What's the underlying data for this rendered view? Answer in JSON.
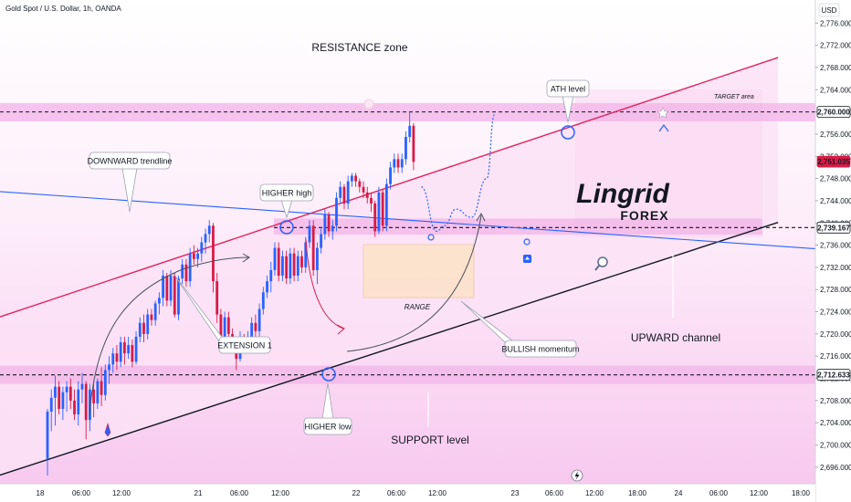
{
  "header": {
    "symbol_line": "Gold Spot / U.S. Dollar, 1h, OANDA"
  },
  "currency_badge": "USD",
  "watermark": {
    "line1": "Lingrid",
    "line2": "FOREX"
  },
  "annotations": {
    "resistance_zone": "RESISTANCE zone",
    "target_area": "TARGET area",
    "ath_level": "ATH level",
    "downward_trendline": "DOWNWARD trendline",
    "higher_high": "HIGHER high",
    "range": "RANGE",
    "extension": "EXTENSION 1",
    "bullish_momentum": "BULLISH momentum",
    "upward_channel": "UPWARD channel",
    "higher_low": "HIGHER low",
    "support_level": "SUPPORT level"
  },
  "colors": {
    "bull": "#2962ff",
    "bear": "#d81b47",
    "zone": "#f3b6e9",
    "channel_fill": "#fce2f6",
    "upper_channel": "#e0245e",
    "lower_channel": "#131722",
    "trendline": "#2962ff",
    "current_price": "#d81b47"
  },
  "chart_data": {
    "type": "candlestick",
    "title": "Gold Spot / U.S. Dollar, 1h, OANDA",
    "y_range": [
      2694,
      2780
    ],
    "y_ticks": [
      "2,776.000",
      "2,772.000",
      "2,768.000",
      "2,764.000",
      "2,760.000",
      "2,756.000",
      "2,752.000",
      "2,748.000",
      "2,744.000",
      "2,740.000",
      "2,736.000",
      "2,732.000",
      "2,728.000",
      "2,724.000",
      "2,720.000",
      "2,716.000",
      "2,712.000",
      "2,708.000",
      "2,704.000",
      "2,700.000",
      "2,696.000"
    ],
    "x_ticks": [
      "18",
      "06:00",
      "12:00",
      "21",
      "06:00",
      "12:00",
      "22",
      "06:00",
      "12:00",
      "23",
      "06:00",
      "12:00",
      "18:00",
      "24",
      "06:00",
      "12:00",
      "18:00"
    ],
    "price_labels": [
      {
        "name": "ath",
        "value": 2760.0,
        "text": "2,760.000"
      },
      {
        "name": "current",
        "value": 2751.035,
        "text": "2,751.035"
      },
      {
        "name": "range-top",
        "value": 2739.167,
        "text": "2,739.167"
      },
      {
        "name": "support",
        "value": 2712.633,
        "text": "2,712.633"
      }
    ],
    "zones": [
      {
        "name": "resistance-zone",
        "from": 2758.3,
        "to": 2761.6
      },
      {
        "name": "range-zone",
        "from": 2737.9,
        "to": 2740.8
      },
      {
        "name": "support-zone",
        "from": 2711.0,
        "to": 2714.3
      }
    ],
    "channel_lines": [
      {
        "name": "upper-channel",
        "from": [
          -14,
          2722.7
        ],
        "to": [
          189.6,
          2769.8
        ]
      },
      {
        "name": "lower-channel",
        "from": [
          -14,
          2694.2
        ],
        "to": [
          189.6,
          2740.1
        ]
      },
      {
        "name": "downward-trendline",
        "from": [
          -15.4,
          2745.8
        ],
        "to": [
          204.6,
          2735.1
        ]
      }
    ],
    "candles": [
      {
        "o": 2697.5,
        "h": 2706.5,
        "l": 2694.5,
        "c": 2706.0
      },
      {
        "o": 2706.0,
        "h": 2710.0,
        "l": 2702.5,
        "c": 2708.5
      },
      {
        "o": 2708.5,
        "h": 2712.5,
        "l": 2703.5,
        "c": 2710.5
      },
      {
        "o": 2710.5,
        "h": 2711.5,
        "l": 2705.5,
        "c": 2706.5
      },
      {
        "o": 2706.5,
        "h": 2710.5,
        "l": 2704.5,
        "c": 2709.5
      },
      {
        "o": 2709.5,
        "h": 2711.5,
        "l": 2706.0,
        "c": 2710.5
      },
      {
        "o": 2710.5,
        "h": 2712.0,
        "l": 2706.5,
        "c": 2708.0
      },
      {
        "o": 2708.0,
        "h": 2710.0,
        "l": 2704.5,
        "c": 2705.5
      },
      {
        "o": 2705.5,
        "h": 2711.5,
        "l": 2703.5,
        "c": 2710.0
      },
      {
        "o": 2710.0,
        "h": 2713.0,
        "l": 2707.5,
        "c": 2711.0
      },
      {
        "o": 2711.0,
        "h": 2711.5,
        "l": 2701.0,
        "c": 2704.5
      },
      {
        "o": 2704.5,
        "h": 2711.0,
        "l": 2702.5,
        "c": 2710.0
      },
      {
        "o": 2710.0,
        "h": 2711.0,
        "l": 2705.0,
        "c": 2707.5
      },
      {
        "o": 2707.5,
        "h": 2712.0,
        "l": 2706.5,
        "c": 2711.5
      },
      {
        "o": 2711.5,
        "h": 2714.0,
        "l": 2707.0,
        "c": 2709.0
      },
      {
        "o": 2709.0,
        "h": 2714.5,
        "l": 2708.0,
        "c": 2713.5
      },
      {
        "o": 2713.5,
        "h": 2716.0,
        "l": 2711.0,
        "c": 2714.5
      },
      {
        "o": 2714.5,
        "h": 2717.5,
        "l": 2713.0,
        "c": 2716.5
      },
      {
        "o": 2716.5,
        "h": 2718.0,
        "l": 2713.5,
        "c": 2715.0
      },
      {
        "o": 2715.0,
        "h": 2719.5,
        "l": 2714.0,
        "c": 2718.5
      },
      {
        "o": 2718.5,
        "h": 2719.5,
        "l": 2714.5,
        "c": 2716.5
      },
      {
        "o": 2716.5,
        "h": 2719.5,
        "l": 2715.5,
        "c": 2718.0
      },
      {
        "o": 2718.0,
        "h": 2719.0,
        "l": 2714.0,
        "c": 2715.0
      },
      {
        "o": 2715.0,
        "h": 2720.5,
        "l": 2714.5,
        "c": 2719.5
      },
      {
        "o": 2719.5,
        "h": 2723.0,
        "l": 2718.5,
        "c": 2722.0
      },
      {
        "o": 2722.0,
        "h": 2723.5,
        "l": 2718.5,
        "c": 2720.0
      },
      {
        "o": 2720.0,
        "h": 2724.5,
        "l": 2719.0,
        "c": 2723.5
      },
      {
        "o": 2723.5,
        "h": 2724.5,
        "l": 2721.5,
        "c": 2722.5
      },
      {
        "o": 2722.5,
        "h": 2726.0,
        "l": 2721.5,
        "c": 2725.5
      },
      {
        "o": 2725.5,
        "h": 2727.5,
        "l": 2723.5,
        "c": 2726.5
      },
      {
        "o": 2726.5,
        "h": 2731.5,
        "l": 2725.0,
        "c": 2730.5
      },
      {
        "o": 2730.5,
        "h": 2731.0,
        "l": 2725.0,
        "c": 2726.0
      },
      {
        "o": 2726.0,
        "h": 2731.5,
        "l": 2725.0,
        "c": 2730.5
      },
      {
        "o": 2730.5,
        "h": 2731.0,
        "l": 2723.0,
        "c": 2723.5
      },
      {
        "o": 2723.5,
        "h": 2730.5,
        "l": 2722.5,
        "c": 2730.0
      },
      {
        "o": 2730.0,
        "h": 2733.5,
        "l": 2729.0,
        "c": 2732.5
      },
      {
        "o": 2732.5,
        "h": 2733.5,
        "l": 2728.5,
        "c": 2729.5
      },
      {
        "o": 2729.5,
        "h": 2735.5,
        "l": 2728.5,
        "c": 2734.5
      },
      {
        "o": 2734.5,
        "h": 2736.0,
        "l": 2732.5,
        "c": 2733.5
      },
      {
        "o": 2733.5,
        "h": 2735.5,
        "l": 2732.0,
        "c": 2734.5
      },
      {
        "o": 2734.5,
        "h": 2737.5,
        "l": 2733.0,
        "c": 2736.5
      },
      {
        "o": 2736.5,
        "h": 2739.0,
        "l": 2734.5,
        "c": 2738.0
      },
      {
        "o": 2738.0,
        "h": 2740.5,
        "l": 2736.5,
        "c": 2739.5
      },
      {
        "o": 2739.5,
        "h": 2740.0,
        "l": 2727.5,
        "c": 2729.5
      },
      {
        "o": 2729.5,
        "h": 2731.0,
        "l": 2722.0,
        "c": 2723.5
      },
      {
        "o": 2723.5,
        "h": 2724.5,
        "l": 2717.5,
        "c": 2719.5
      },
      {
        "o": 2719.5,
        "h": 2724.0,
        "l": 2718.0,
        "c": 2723.0
      },
      {
        "o": 2723.0,
        "h": 2724.0,
        "l": 2718.5,
        "c": 2720.0
      },
      {
        "o": 2720.0,
        "h": 2721.0,
        "l": 2716.5,
        "c": 2718.0
      },
      {
        "o": 2718.0,
        "h": 2719.0,
        "l": 2713.5,
        "c": 2715.5
      },
      {
        "o": 2715.5,
        "h": 2720.5,
        "l": 2715.0,
        "c": 2719.5
      },
      {
        "o": 2719.5,
        "h": 2720.0,
        "l": 2716.5,
        "c": 2718.0
      },
      {
        "o": 2718.0,
        "h": 2720.5,
        "l": 2717.0,
        "c": 2719.5
      },
      {
        "o": 2719.5,
        "h": 2723.0,
        "l": 2718.5,
        "c": 2722.0
      },
      {
        "o": 2722.0,
        "h": 2723.5,
        "l": 2719.5,
        "c": 2720.5
      },
      {
        "o": 2720.5,
        "h": 2725.5,
        "l": 2719.5,
        "c": 2724.5
      },
      {
        "o": 2724.5,
        "h": 2728.5,
        "l": 2723.5,
        "c": 2727.5
      },
      {
        "o": 2727.5,
        "h": 2730.5,
        "l": 2726.5,
        "c": 2729.5
      },
      {
        "o": 2729.5,
        "h": 2733.0,
        "l": 2727.5,
        "c": 2731.5
      },
      {
        "o": 2731.5,
        "h": 2736.5,
        "l": 2730.5,
        "c": 2735.5
      },
      {
        "o": 2735.5,
        "h": 2736.5,
        "l": 2729.5,
        "c": 2730.5
      },
      {
        "o": 2730.5,
        "h": 2735.0,
        "l": 2729.5,
        "c": 2734.0
      },
      {
        "o": 2734.0,
        "h": 2735.0,
        "l": 2729.0,
        "c": 2730.0
      },
      {
        "o": 2730.0,
        "h": 2735.5,
        "l": 2729.0,
        "c": 2734.5
      },
      {
        "o": 2734.5,
        "h": 2735.5,
        "l": 2729.5,
        "c": 2730.5
      },
      {
        "o": 2730.5,
        "h": 2735.0,
        "l": 2729.5,
        "c": 2734.0
      },
      {
        "o": 2734.0,
        "h": 2735.0,
        "l": 2731.0,
        "c": 2732.0
      },
      {
        "o": 2732.0,
        "h": 2737.5,
        "l": 2731.0,
        "c": 2736.5
      },
      {
        "o": 2736.5,
        "h": 2740.5,
        "l": 2735.5,
        "c": 2739.5
      },
      {
        "o": 2739.5,
        "h": 2740.5,
        "l": 2730.5,
        "c": 2731.5
      },
      {
        "o": 2731.5,
        "h": 2736.5,
        "l": 2729.0,
        "c": 2735.5
      },
      {
        "o": 2735.5,
        "h": 2739.0,
        "l": 2734.5,
        "c": 2738.0
      },
      {
        "o": 2738.0,
        "h": 2742.5,
        "l": 2737.0,
        "c": 2741.5
      },
      {
        "o": 2741.5,
        "h": 2742.0,
        "l": 2737.5,
        "c": 2738.5
      },
      {
        "o": 2738.5,
        "h": 2740.5,
        "l": 2737.0,
        "c": 2739.5
      },
      {
        "o": 2739.5,
        "h": 2745.5,
        "l": 2738.5,
        "c": 2744.5
      },
      {
        "o": 2744.5,
        "h": 2747.5,
        "l": 2743.5,
        "c": 2746.5
      },
      {
        "o": 2746.5,
        "h": 2747.0,
        "l": 2742.5,
        "c": 2743.5
      },
      {
        "o": 2743.5,
        "h": 2748.5,
        "l": 2742.5,
        "c": 2747.5
      },
      {
        "o": 2747.5,
        "h": 2749.0,
        "l": 2746.5,
        "c": 2748.5
      },
      {
        "o": 2748.5,
        "h": 2749.0,
        "l": 2746.5,
        "c": 2747.5
      },
      {
        "o": 2747.5,
        "h": 2748.0,
        "l": 2745.5,
        "c": 2746.5
      },
      {
        "o": 2746.5,
        "h": 2747.5,
        "l": 2744.5,
        "c": 2745.5
      },
      {
        "o": 2745.5,
        "h": 2746.5,
        "l": 2743.5,
        "c": 2744.5
      },
      {
        "o": 2744.5,
        "h": 2745.5,
        "l": 2742.0,
        "c": 2743.5
      },
      {
        "o": 2743.5,
        "h": 2744.0,
        "l": 2737.5,
        "c": 2738.5
      },
      {
        "o": 2738.5,
        "h": 2746.5,
        "l": 2738.0,
        "c": 2745.5
      },
      {
        "o": 2745.5,
        "h": 2746.0,
        "l": 2738.5,
        "c": 2739.5
      },
      {
        "o": 2739.5,
        "h": 2748.0,
        "l": 2738.5,
        "c": 2747.0
      },
      {
        "o": 2747.0,
        "h": 2751.0,
        "l": 2746.0,
        "c": 2750.0
      },
      {
        "o": 2750.0,
        "h": 2752.5,
        "l": 2749.0,
        "c": 2751.5
      },
      {
        "o": 2751.5,
        "h": 2752.5,
        "l": 2749.0,
        "c": 2750.0
      },
      {
        "o": 2750.0,
        "h": 2752.5,
        "l": 2749.0,
        "c": 2751.5
      },
      {
        "o": 2751.5,
        "h": 2756.5,
        "l": 2750.5,
        "c": 2755.5
      },
      {
        "o": 2755.5,
        "h": 2760.0,
        "l": 2754.5,
        "c": 2757.5
      },
      {
        "o": 2757.5,
        "h": 2758.0,
        "l": 2749.5,
        "c": 2751.0
      }
    ],
    "projection": [
      [
        97,
        2746.5
      ],
      [
        101,
        2738.5
      ],
      [
        103,
        2739.5
      ],
      [
        106,
        2742.5
      ],
      [
        110,
        2741.0
      ],
      [
        114,
        2748.0
      ],
      [
        116,
        2759.5
      ]
    ]
  }
}
